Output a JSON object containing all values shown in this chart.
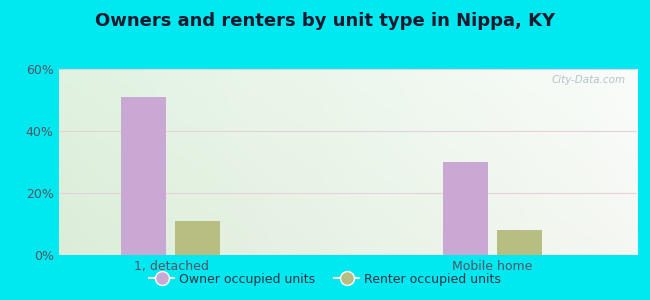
{
  "title": "Owners and renters by unit type in Nippa, KY",
  "categories": [
    "1, detached",
    "Mobile home"
  ],
  "owner_values": [
    51,
    30
  ],
  "renter_values": [
    11,
    8
  ],
  "owner_color": "#c9a8d4",
  "renter_color": "#b8be82",
  "ylim": [
    0,
    60
  ],
  "yticks": [
    0,
    20,
    40,
    60
  ],
  "ytick_labels": [
    "0%",
    "20%",
    "40%",
    "60%"
  ],
  "bar_width": 0.28,
  "group_positions": [
    1.0,
    3.0
  ],
  "outer_color": "#00e8f0",
  "watermark": "City-Data.com",
  "legend_owner": "Owner occupied units",
  "legend_renter": "Renter occupied units",
  "title_fontsize": 13,
  "tick_fontsize": 9,
  "legend_fontsize": 9,
  "xlim": [
    0.3,
    3.9
  ]
}
